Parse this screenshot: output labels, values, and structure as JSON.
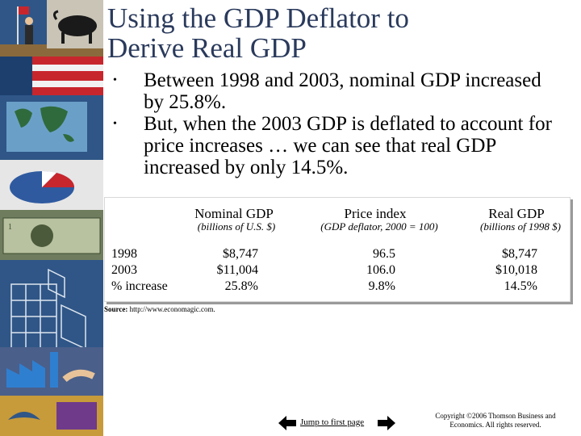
{
  "slide": {
    "title_line1": "Using the GDP Deflator to",
    "title_line2": "Derive Real GDP",
    "bullets": [
      "Between 1998 and 2003, nominal GDP increased by 25.8%.",
      "But, when the 2003 GDP is deflated to account for price increases … we can see that real GDP increased by only 14.5%."
    ],
    "bullet_glyph": "•"
  },
  "table": {
    "columns": [
      {
        "header": "Nominal GDP",
        "sub": "(billions of U.S. $)"
      },
      {
        "header": "Price index",
        "sub": "(GDP deflator, 2000 = 100)"
      },
      {
        "header": "Real GDP",
        "sub": "(billions of 1998 $)"
      }
    ],
    "rows": [
      {
        "label": "1998",
        "nominal": "$8,747",
        "price": "96.5",
        "real": "$8,747"
      },
      {
        "label": "2003",
        "nominal": "$11,004",
        "price": "106.0",
        "real": "$10,018"
      },
      {
        "label": "% increase",
        "nominal": "25.8%",
        "price": "9.8%",
        "real": "14.5%"
      }
    ]
  },
  "source": {
    "label": "Source:",
    "text": "http://www.economagic.com."
  },
  "footer": {
    "jump_link": "Jump to first page",
    "copyright_line1": "Copyright ©2006  Thomson Business and",
    "copyright_line2": "Economics. All rights reserved."
  },
  "decoration": {
    "strip_icons": [
      "flag-person-icon",
      "bull-icon",
      "world-map-icon",
      "pie-chart-icon",
      "banknote-icon",
      "building-icon",
      "factory-icon",
      "handshake-icon",
      "bird-icon"
    ],
    "colors": {
      "strip_blue": "#1d3f6e",
      "title": "#2a3a5c",
      "pie_red": "#c8262d"
    }
  }
}
